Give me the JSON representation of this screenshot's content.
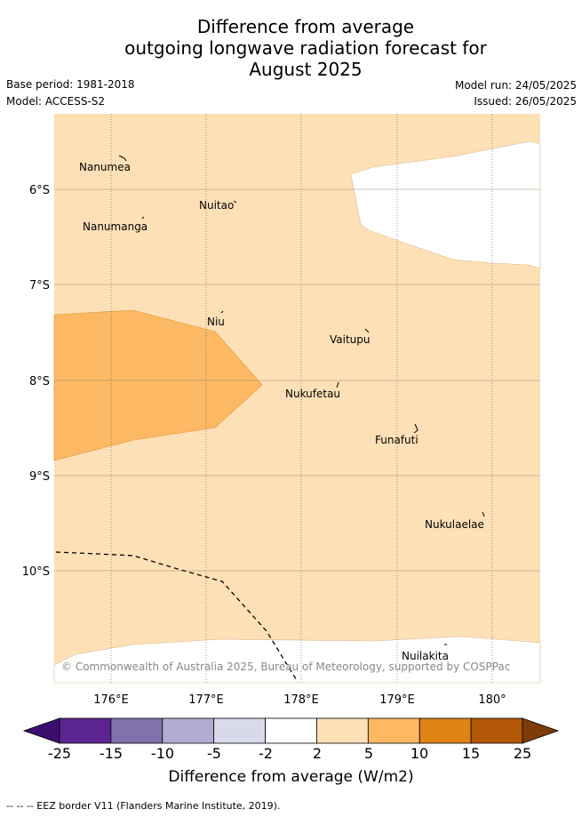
{
  "header": {
    "title_lines": [
      "Difference from average",
      "outgoing longwave radiation forecast for",
      "August 2025"
    ],
    "base_period": "Base period: 1981-2018",
    "model": "Model: ACCESS-S2",
    "model_run": "Model run: 24/05/2025",
    "issued": "Issued: 26/05/2025"
  },
  "map": {
    "lat_labels": [
      "6°S",
      "7°S",
      "8°S",
      "9°S",
      "10°S"
    ],
    "lon_labels": [
      "176°E",
      "177°E",
      "178°E",
      "179°E",
      "180°"
    ],
    "places": [
      "Nanumea",
      "Nuitao",
      "Nanumanga",
      "Niu",
      "Vaitupu",
      "Nukufetau",
      "Funafuti",
      "Nukulaelae",
      "Nuilakita"
    ],
    "copyright": "© Commonwealth of Australia 2025, Bureau of Meteorology, supported by COSPPac"
  },
  "colorbar": {
    "label": "Difference from average (W/m2)",
    "ticks": [
      "-25",
      "-15",
      "-10",
      "-5",
      "-2",
      "2",
      "5",
      "10",
      "15",
      "25"
    ],
    "colors": [
      "#3b0f70",
      "#5c2490",
      "#8073ac",
      "#b2abd2",
      "#d8daeb",
      "#ffffff",
      "#fee0b6",
      "#fdb863",
      "#e08214",
      "#b35806",
      "#7f3b08"
    ]
  },
  "legend_footer": "-- -- -- EEZ border V11 (Flanders Marine Institute, 2019)."
}
